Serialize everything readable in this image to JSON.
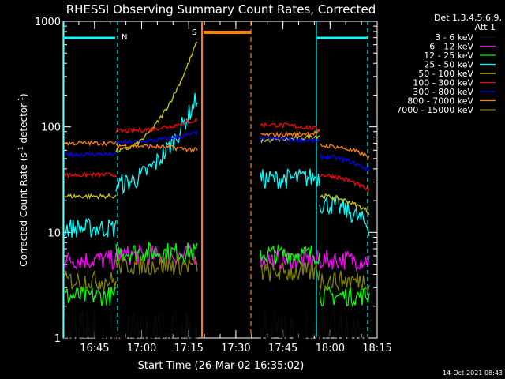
{
  "chart_data": {
    "type": "line",
    "title": "RHESSI Observing Summary Count Rates, Corrected",
    "ylabel_main": "Corrected Count Rate (s",
    "ylabel_sup1": "-1",
    "ylabel_mid": " detector",
    "ylabel_sup2": "-1",
    "ylabel_end": ")",
    "xlabel": "Start Time (26-Mar-02 16:35:02)",
    "stamp": "14-Oct-2021 08:43",
    "yscale": "log",
    "ylim": [
      1,
      1000
    ],
    "xlim_minutes": [
      0,
      100
    ],
    "y_ticks": [
      {
        "value": 1,
        "label": "1"
      },
      {
        "value": 10,
        "label": "10"
      },
      {
        "value": 100,
        "label": "100"
      },
      {
        "value": 1000,
        "label": "1000"
      }
    ],
    "x_ticks": [
      {
        "minute": 10,
        "label": "16:45"
      },
      {
        "minute": 25,
        "label": "17:00"
      },
      {
        "minute": 40,
        "label": "17:15"
      },
      {
        "minute": 55,
        "label": "17:30"
      },
      {
        "minute": 70,
        "label": "17:45"
      },
      {
        "minute": 85,
        "label": "18:00"
      },
      {
        "minute": 100,
        "label": "18:15"
      }
    ],
    "legend_header": [
      "Det 1,3,4,5,6,9,",
      "Att 1"
    ],
    "series": [
      {
        "name": "3 - 6 keV",
        "color": "#000000",
        "level": 1.5
      },
      {
        "name": "6 - 12 keV",
        "color": "#ff00ff",
        "level": 5.5
      },
      {
        "name": "12 - 25 keV",
        "color": "#00ff00",
        "level": 2.5
      },
      {
        "name": "25 - 50 keV",
        "color": "#00ffff",
        "level": 11
      },
      {
        "name": "50 - 100 keV",
        "color": "#cccc00",
        "level": 22
      },
      {
        "name": "100 - 300 keV",
        "color": "#ff0000",
        "level": 35
      },
      {
        "name": "300 - 800 keV",
        "color": "#0000ff",
        "level": 55
      },
      {
        "name": "800 - 7000 keV",
        "color": "#ff8000",
        "level": 70
      },
      {
        "name": "7000 - 15000 keV",
        "color": "#808000",
        "level": 3.5
      }
    ],
    "flags": [
      {
        "label": "N",
        "color": "#00ffff"
      },
      {
        "label": "S",
        "color": "#ff8000"
      }
    ]
  }
}
